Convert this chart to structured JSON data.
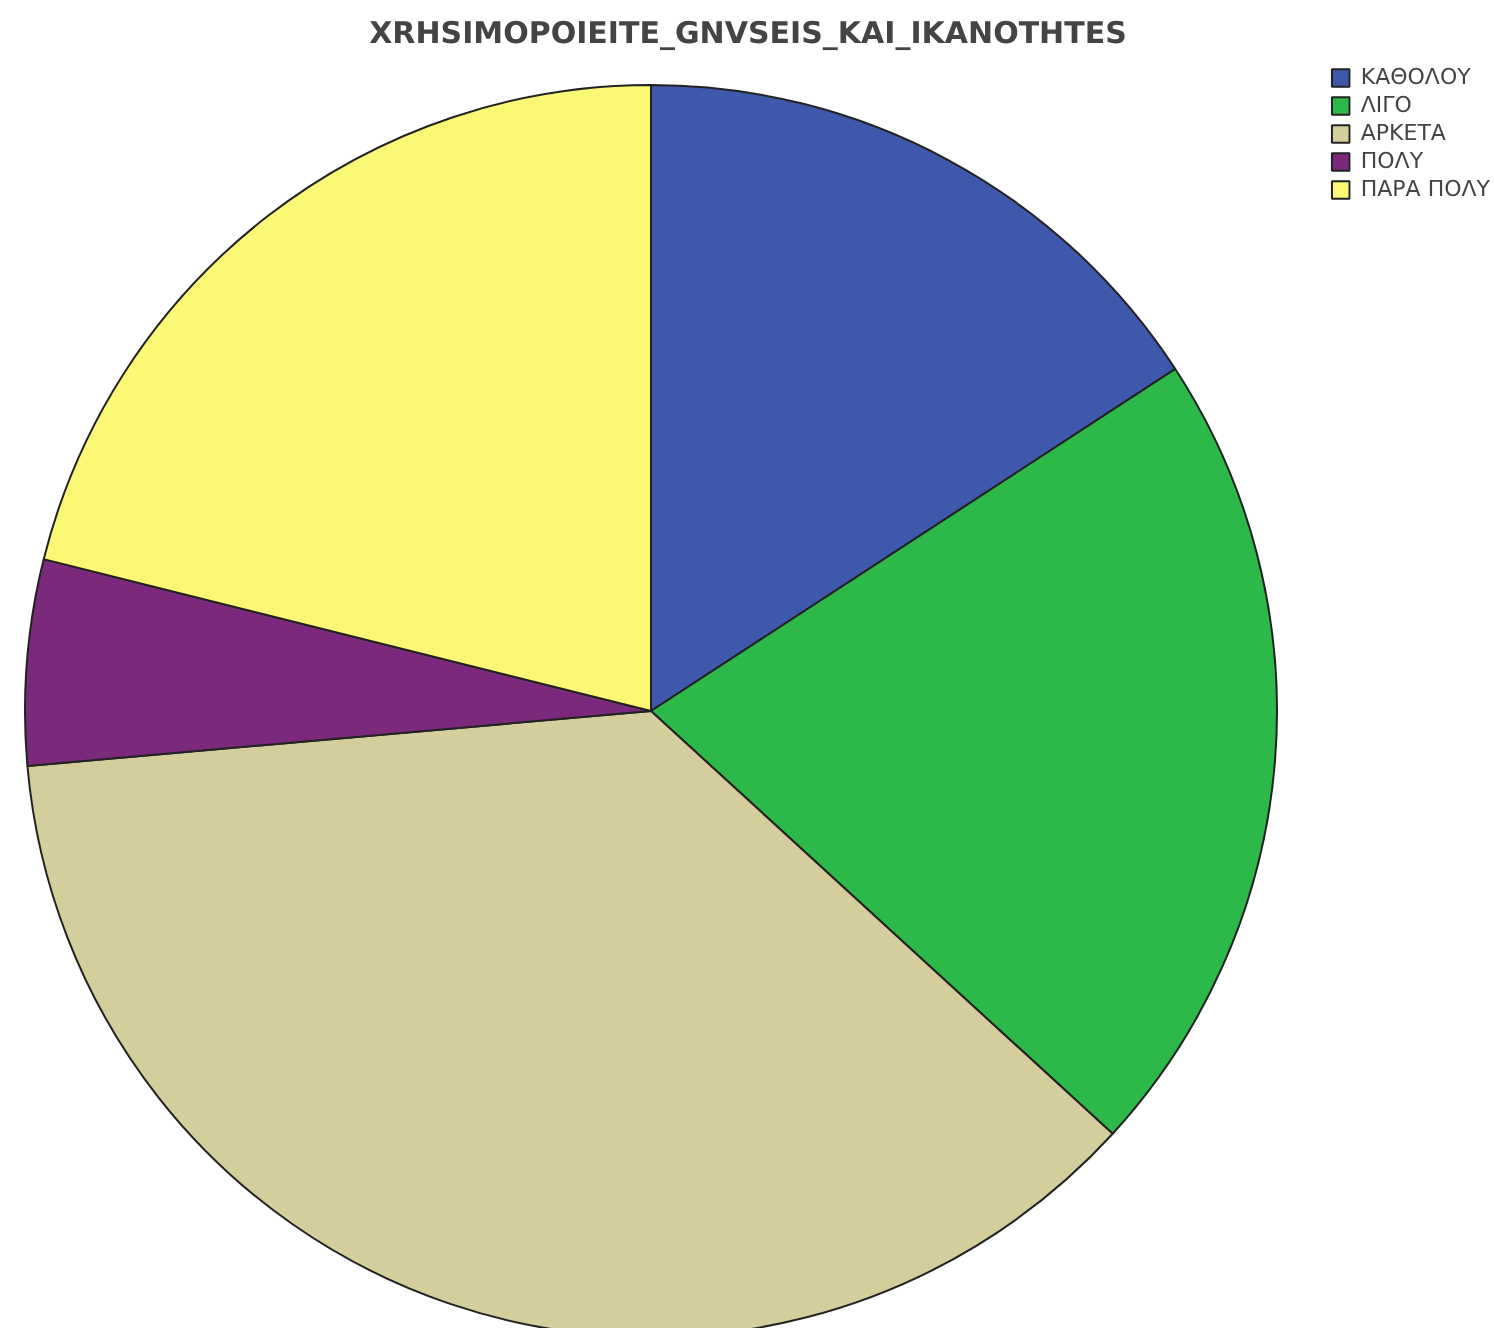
{
  "chart_data": {
    "type": "pie",
    "title": "XRHSIMOPOIEITE_GNVSEIS_KAI_IKANOTHTES",
    "categories": [
      "ΚΑΘΟΛΟΥ",
      "ΛΙΓΟ",
      "ΑΡΚΕΤΑ",
      "ΠΟΛΥ",
      "ΠΑΡΑ ΠΟΛΥ"
    ],
    "values": [
      15.8,
      21.0,
      36.8,
      5.3,
      21.1
    ],
    "colors": [
      "#3e58ac",
      "#2db84a",
      "#d3ce9b",
      "#7b2a7b",
      "#fbf876"
    ],
    "legend": "top right"
  }
}
